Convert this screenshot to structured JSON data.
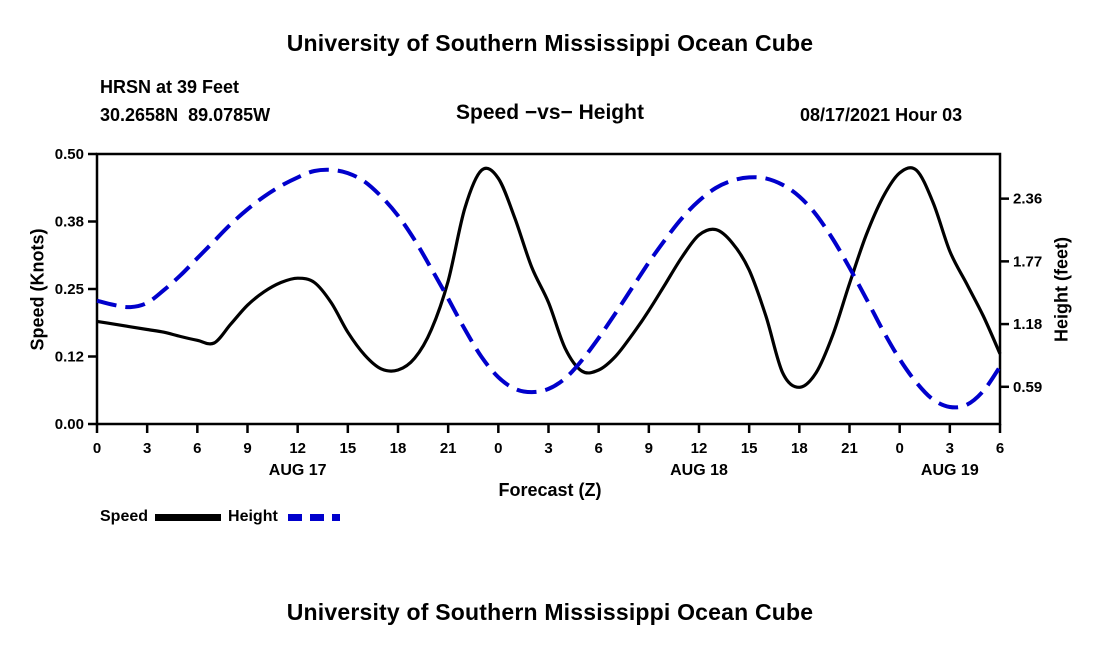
{
  "page": {
    "title_top": "University of Southern Mississippi Ocean Cube",
    "title_bottom": "University of Southern Mississippi Ocean Cube"
  },
  "header": {
    "station": "HRSN at 39 Feet",
    "coordinates": "30.2658N  89.0785W",
    "title": "Speed −vs− Height",
    "datetime": "08/17/2021 Hour 03"
  },
  "chart_data": {
    "type": "line",
    "title": "Speed −vs− Height",
    "xlabel": "Forecast (Z)",
    "ylabel_left": "Speed (Knots)",
    "ylabel_right": "Height (feet)",
    "x_range": [
      0,
      54
    ],
    "x_ticks": [
      {
        "hour": 0,
        "label": "0"
      },
      {
        "hour": 3,
        "label": "3"
      },
      {
        "hour": 6,
        "label": "6"
      },
      {
        "hour": 9,
        "label": "9"
      },
      {
        "hour": 12,
        "label": "12"
      },
      {
        "hour": 15,
        "label": "15"
      },
      {
        "hour": 18,
        "label": "18"
      },
      {
        "hour": 21,
        "label": "21"
      },
      {
        "hour": 24,
        "label": "0"
      },
      {
        "hour": 27,
        "label": "3"
      },
      {
        "hour": 30,
        "label": "6"
      },
      {
        "hour": 33,
        "label": "9"
      },
      {
        "hour": 36,
        "label": "12"
      },
      {
        "hour": 39,
        "label": "15"
      },
      {
        "hour": 42,
        "label": "18"
      },
      {
        "hour": 45,
        "label": "21"
      },
      {
        "hour": 48,
        "label": "0"
      },
      {
        "hour": 51,
        "label": "3"
      },
      {
        "hour": 54,
        "label": "6"
      }
    ],
    "date_labels": [
      {
        "hour": 12,
        "label": "AUG 17"
      },
      {
        "hour": 36,
        "label": "AUG 18"
      },
      {
        "hour": 51,
        "label": "AUG 19"
      }
    ],
    "left_axis": {
      "min": 0.0,
      "max": 0.5,
      "tick_values": [
        0.0,
        0.125,
        0.25,
        0.375,
        0.5
      ],
      "tick_labels": [
        "0.00",
        "0.12",
        "0.25",
        "0.38",
        "0.50"
      ]
    },
    "right_axis": {
      "min": 0.24,
      "max": 2.78,
      "tick_values": [
        0.59,
        1.18,
        1.77,
        2.36
      ],
      "tick_labels": [
        "0.59",
        "1.18",
        "1.77",
        "2.36"
      ]
    },
    "grid": false,
    "series": [
      {
        "name": "Speed",
        "axis": "left",
        "color": "#000000",
        "width": 3.2,
        "dash": "",
        "values": [
          0.19,
          0.185,
          0.18,
          0.175,
          0.17,
          0.162,
          0.155,
          0.15,
          0.185,
          0.22,
          0.245,
          0.262,
          0.27,
          0.262,
          0.225,
          0.17,
          0.128,
          0.102,
          0.1,
          0.122,
          0.175,
          0.265,
          0.4,
          0.47,
          0.455,
          0.38,
          0.29,
          0.225,
          0.14,
          0.098,
          0.1,
          0.125,
          0.165,
          0.21,
          0.26,
          0.31,
          0.35,
          0.36,
          0.335,
          0.285,
          0.2,
          0.095,
          0.068,
          0.095,
          0.165,
          0.26,
          0.35,
          0.42,
          0.465,
          0.47,
          0.41,
          0.32,
          0.26,
          0.2,
          0.13
        ]
      },
      {
        "name": "Height",
        "axis": "right",
        "color": "#0000cc",
        "width": 4,
        "dash": "20 9",
        "values": [
          1.4,
          1.36,
          1.34,
          1.38,
          1.5,
          1.64,
          1.8,
          1.96,
          2.12,
          2.26,
          2.38,
          2.48,
          2.56,
          2.62,
          2.63,
          2.6,
          2.52,
          2.38,
          2.2,
          1.97,
          1.7,
          1.42,
          1.13,
          0.87,
          0.68,
          0.57,
          0.54,
          0.57,
          0.67,
          0.84,
          1.05,
          1.28,
          1.52,
          1.76,
          1.98,
          2.18,
          2.34,
          2.46,
          2.53,
          2.56,
          2.55,
          2.49,
          2.38,
          2.21,
          1.98,
          1.71,
          1.42,
          1.12,
          0.85,
          0.63,
          0.47,
          0.4,
          0.42,
          0.55,
          0.78
        ]
      }
    ],
    "legend": {
      "speed_label": "Speed",
      "height_label": "Height"
    }
  }
}
